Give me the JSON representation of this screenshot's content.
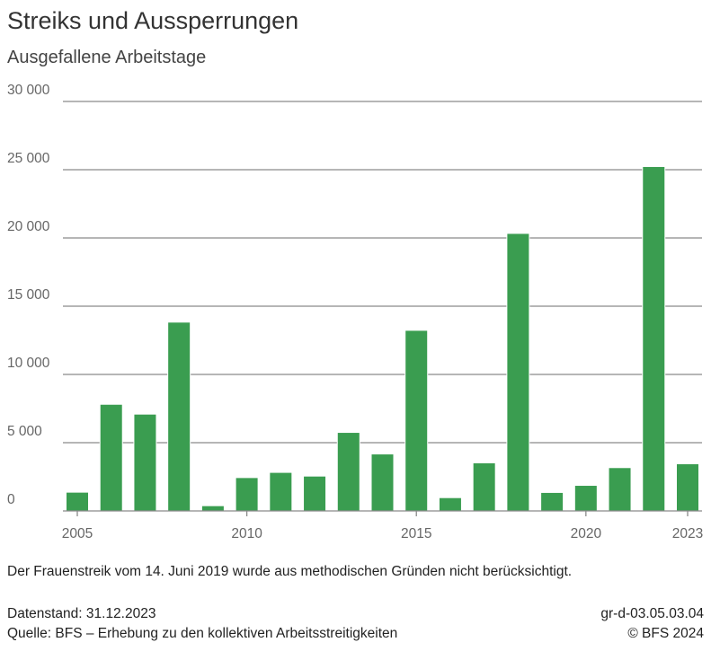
{
  "title": "Streiks und Aussperrungen",
  "subtitle": "Ausgefallene Arbeitstage",
  "note": "Der Frauenstreik vom 14. Juni 2019 wurde aus methodischen Gründen nicht berücksichtigt.",
  "footer": {
    "datenstand": "Datenstand: 31.12.2023",
    "quelle": "Quelle: BFS – Erhebung zu den kollektiven Arbeitsstreitigkeiten",
    "code": "gr-d-03.05.03.04",
    "copyright": "© BFS 2024"
  },
  "chart_data": {
    "type": "bar",
    "title": "Streiks und Aussperrungen",
    "subtitle": "Ausgefallene Arbeitstage",
    "categories": [
      2005,
      2006,
      2007,
      2008,
      2009,
      2010,
      2011,
      2012,
      2013,
      2014,
      2015,
      2016,
      2017,
      2018,
      2019,
      2020,
      2021,
      2022,
      2023
    ],
    "values": [
      1340,
      7780,
      7060,
      13800,
      350,
      2410,
      2790,
      2520,
      5720,
      4140,
      13200,
      940,
      3490,
      20300,
      1320,
      1840,
      3140,
      25200,
      3420
    ],
    "ylim": [
      0,
      30000
    ],
    "yticks": [
      0,
      5000,
      10000,
      15000,
      20000,
      25000,
      30000
    ],
    "ytick_labels": [
      "0",
      "5 000",
      "10 000",
      "15 000",
      "20 000",
      "25 000",
      "30 000"
    ],
    "xtick_labels": [
      "2005",
      "2010",
      "2015",
      "2020",
      "2023"
    ],
    "grid": true,
    "color": "#3a9d50"
  }
}
